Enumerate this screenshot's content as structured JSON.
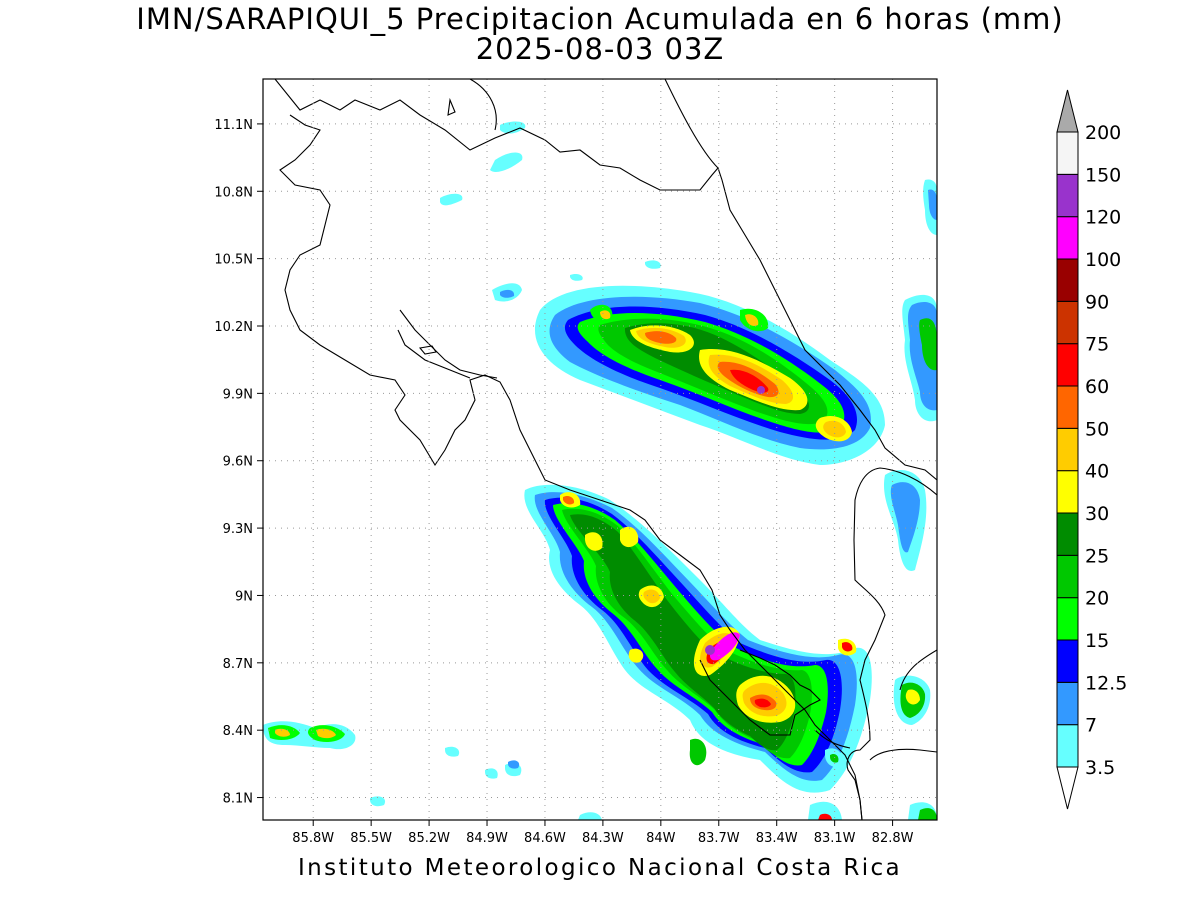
{
  "title_line1": "IMN/SARAPIQUI_5 Precipitacion Acumulada en 6 horas (mm)",
  "title_line2": "2025-08-03 03Z",
  "footer": "Instituto Meteorologico Nacional Costa Rica",
  "map": {
    "lon_range": [
      -86.06,
      -82.57
    ],
    "lat_range": [
      8.0,
      11.3
    ],
    "lat_ticks": [
      "11.1N",
      "10.8N",
      "10.5N",
      "10.2N",
      "9.9N",
      "9.6N",
      "9.3N",
      "9N",
      "8.7N",
      "8.4N",
      "8.1N"
    ],
    "lon_ticks": [
      "85.8W",
      "85.5W",
      "85.2W",
      "84.9W",
      "84.6W",
      "84.3W",
      "84W",
      "83.7W",
      "83.4W",
      "83.1W",
      "82.8W"
    ],
    "grid": "dotted"
  },
  "colorbar": {
    "labels": [
      "3.5",
      "7",
      "12.5",
      "15",
      "20",
      "25",
      "30",
      "40",
      "50",
      "60",
      "75",
      "90",
      "100",
      "120",
      "150",
      "200"
    ],
    "colors": [
      "#66ffff",
      "#3399ff",
      "#0000ff",
      "#00ff00",
      "#00c800",
      "#008c00",
      "#ffff00",
      "#ffcc00",
      "#ff6600",
      "#ff0000",
      "#cc3300",
      "#990000",
      "#ff00ff",
      "#9933cc",
      "#f5f5f5",
      "#aaaaaa"
    ]
  }
}
